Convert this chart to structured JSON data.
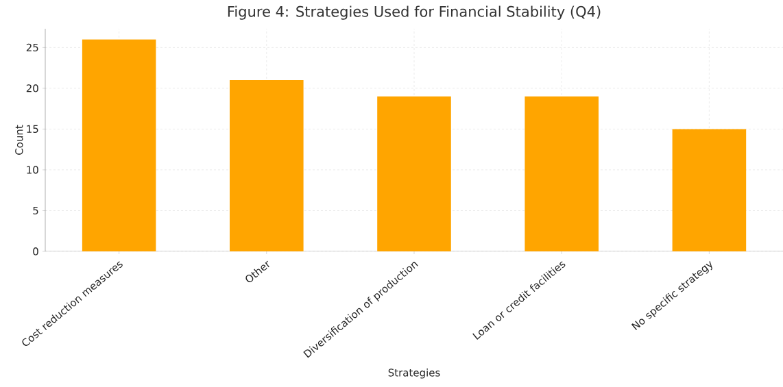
{
  "chart_data": {
    "type": "bar",
    "title": "Figure 4: Strategies Used for Financial Stability (Q4)",
    "xlabel": "Strategies",
    "ylabel": "Count",
    "categories": [
      "Cost reduction measures",
      "Other",
      "Diversification of production",
      "Loan or credit facilities",
      "No specific strategy"
    ],
    "values": [
      26,
      21,
      19,
      19,
      15
    ],
    "color": "#ffa500",
    "ylim": [
      0,
      27.3
    ],
    "yticks": [
      0,
      5,
      10,
      15,
      20,
      25
    ],
    "grid": true
  }
}
